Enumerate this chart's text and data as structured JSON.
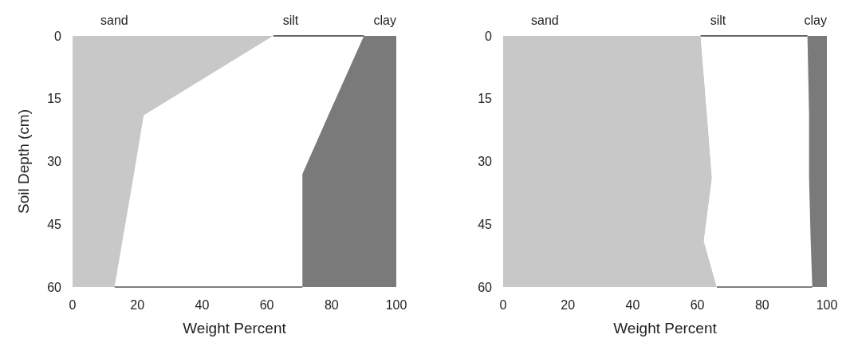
{
  "chart_data": [
    {
      "type": "area",
      "orientation": "horizontal",
      "stacked": true,
      "ylabel": "Soil Depth (cm)",
      "xlabel": "Weight Percent",
      "x": [
        0,
        19,
        33,
        60
      ],
      "series": [
        {
          "name": "sand",
          "color": "#c8c8c8",
          "values": [
            62,
            22,
            19,
            13
          ]
        },
        {
          "name": "silt",
          "color": "#ffffff",
          "values": [
            28,
            57,
            52,
            58
          ]
        },
        {
          "name": "clay",
          "color": "#7a7a7a",
          "values": [
            10,
            21,
            29,
            29
          ]
        }
      ],
      "xlim": [
        0,
        100
      ],
      "xticks": [
        0,
        20,
        40,
        60,
        80,
        100
      ],
      "ylim": [
        60,
        0
      ],
      "yticks": [
        0,
        15,
        30,
        45,
        60
      ]
    },
    {
      "type": "area",
      "orientation": "horizontal",
      "stacked": true,
      "xlabel": "Weight Percent",
      "x": [
        0,
        19,
        34,
        49,
        60
      ],
      "series": [
        {
          "name": "sand",
          "color": "#c8c8c8",
          "values": [
            61,
            63,
            64.5,
            62,
            66
          ]
        },
        {
          "name": "silt",
          "color": "#ffffff",
          "values": [
            33,
            31.5,
            30,
            33,
            29.5
          ]
        },
        {
          "name": "clay",
          "color": "#7a7a7a",
          "values": [
            6,
            5.5,
            5.5,
            5,
            4.5
          ]
        }
      ],
      "xlim": [
        0,
        100
      ],
      "xticks": [
        0,
        20,
        40,
        60,
        80,
        100
      ],
      "ylim": [
        60,
        0
      ],
      "yticks": [
        0,
        15,
        30,
        45,
        60
      ]
    }
  ]
}
